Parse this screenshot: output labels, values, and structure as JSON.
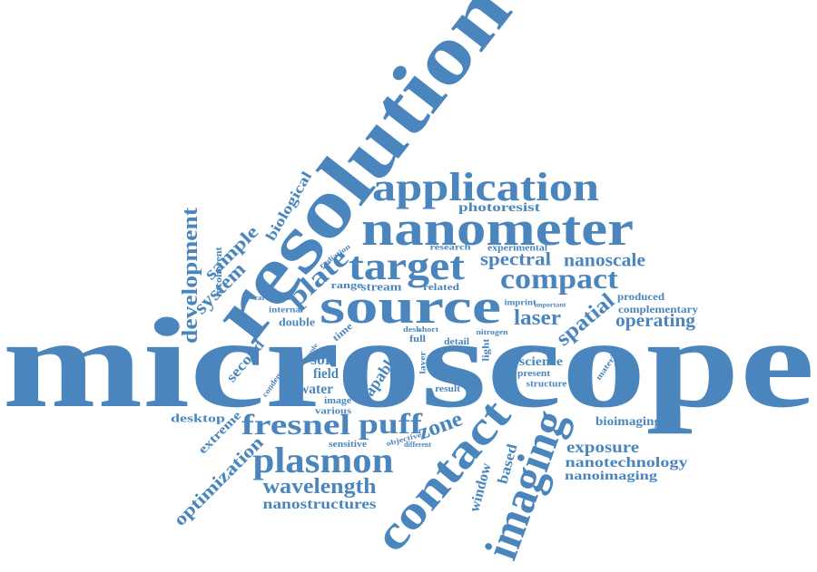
{
  "colors": {
    "word": "#4a86bd",
    "background": "#ffffff"
  },
  "words": [
    {
      "id": "microscope",
      "text": "microscope"
    },
    {
      "id": "resolution",
      "text": "resolution"
    },
    {
      "id": "application",
      "text": "application"
    },
    {
      "id": "nanometer",
      "text": "nanometer"
    },
    {
      "id": "target",
      "text": "target"
    },
    {
      "id": "source",
      "text": "source"
    },
    {
      "id": "compact",
      "text": "compact"
    },
    {
      "id": "spectral",
      "text": "spectral"
    },
    {
      "id": "nanoscale",
      "text": "nanoscale"
    },
    {
      "id": "photoresist",
      "text": "photoresist"
    },
    {
      "id": "research",
      "text": "research"
    },
    {
      "id": "experimental",
      "text": "experimental"
    },
    {
      "id": "plate",
      "text": "plate"
    },
    {
      "id": "stream",
      "text": "stream"
    },
    {
      "id": "range",
      "text": "range"
    },
    {
      "id": "related",
      "text": "related"
    },
    {
      "id": "radiation",
      "text": "radiation"
    },
    {
      "id": "imprint",
      "text": "imprint"
    },
    {
      "id": "important",
      "text": "important"
    },
    {
      "id": "produced",
      "text": "produced"
    },
    {
      "id": "complementary",
      "text": "complementary"
    },
    {
      "id": "operating",
      "text": "operating"
    },
    {
      "id": "laser",
      "text": "laser"
    },
    {
      "id": "spatial",
      "text": "spatial"
    },
    {
      "id": "carcinoma",
      "text": "carcinoma"
    },
    {
      "id": "internal",
      "text": "internal"
    },
    {
      "id": "double",
      "text": "double"
    },
    {
      "id": "development",
      "text": "development"
    },
    {
      "id": "biological",
      "text": "biological"
    },
    {
      "id": "sample",
      "text": "sample"
    },
    {
      "id": "system",
      "text": "system"
    },
    {
      "id": "incoherent",
      "text": "incoherent"
    },
    {
      "id": "second",
      "text": "second"
    },
    {
      "id": "time",
      "text": "time"
    },
    {
      "id": "soft",
      "text": "soft"
    },
    {
      "id": "field",
      "text": "field"
    },
    {
      "id": "water",
      "text": "water"
    },
    {
      "id": "image",
      "text": "image"
    },
    {
      "id": "various",
      "text": "various"
    },
    {
      "id": "capable",
      "text": "capable"
    },
    {
      "id": "full",
      "text": "full"
    },
    {
      "id": "desk",
      "text": "desk"
    },
    {
      "id": "short",
      "text": "short"
    },
    {
      "id": "detail",
      "text": "detail"
    },
    {
      "id": "nitrogen",
      "text": "nitrogen"
    },
    {
      "id": "light",
      "text": "light"
    },
    {
      "id": "layer",
      "text": "layer"
    },
    {
      "id": "diatom",
      "text": "diatom"
    },
    {
      "id": "result",
      "text": "result"
    },
    {
      "id": "science",
      "text": "science"
    },
    {
      "id": "present",
      "text": "present"
    },
    {
      "id": "structure",
      "text": "structure"
    },
    {
      "id": "material",
      "text": "material"
    },
    {
      "id": "condenser",
      "text": "condenser"
    },
    {
      "id": "example",
      "text": "example"
    },
    {
      "id": "desktop",
      "text": "desktop"
    },
    {
      "id": "extreme",
      "text": "extreme"
    },
    {
      "id": "optimization",
      "text": "optimization"
    },
    {
      "id": "fresnel",
      "text": "fresnel"
    },
    {
      "id": "puff",
      "text": "puff"
    },
    {
      "id": "zone",
      "text": "zone"
    },
    {
      "id": "objective",
      "text": "objective"
    },
    {
      "id": "different",
      "text": "different"
    },
    {
      "id": "sensitive",
      "text": "sensitive"
    },
    {
      "id": "plasmon",
      "text": "plasmon"
    },
    {
      "id": "wavelength",
      "text": "wavelength"
    },
    {
      "id": "nanostructures",
      "text": "nanostructures"
    },
    {
      "id": "contact",
      "text": "contact"
    },
    {
      "id": "imaging",
      "text": "imaging"
    },
    {
      "id": "window",
      "text": "window"
    },
    {
      "id": "based",
      "text": "based"
    },
    {
      "id": "bioimaging",
      "text": "bioimaging"
    },
    {
      "id": "exposure",
      "text": "exposure"
    },
    {
      "id": "nanotechnology",
      "text": "nanotechnology"
    },
    {
      "id": "nanoimaging",
      "text": "nanoimaging"
    }
  ]
}
